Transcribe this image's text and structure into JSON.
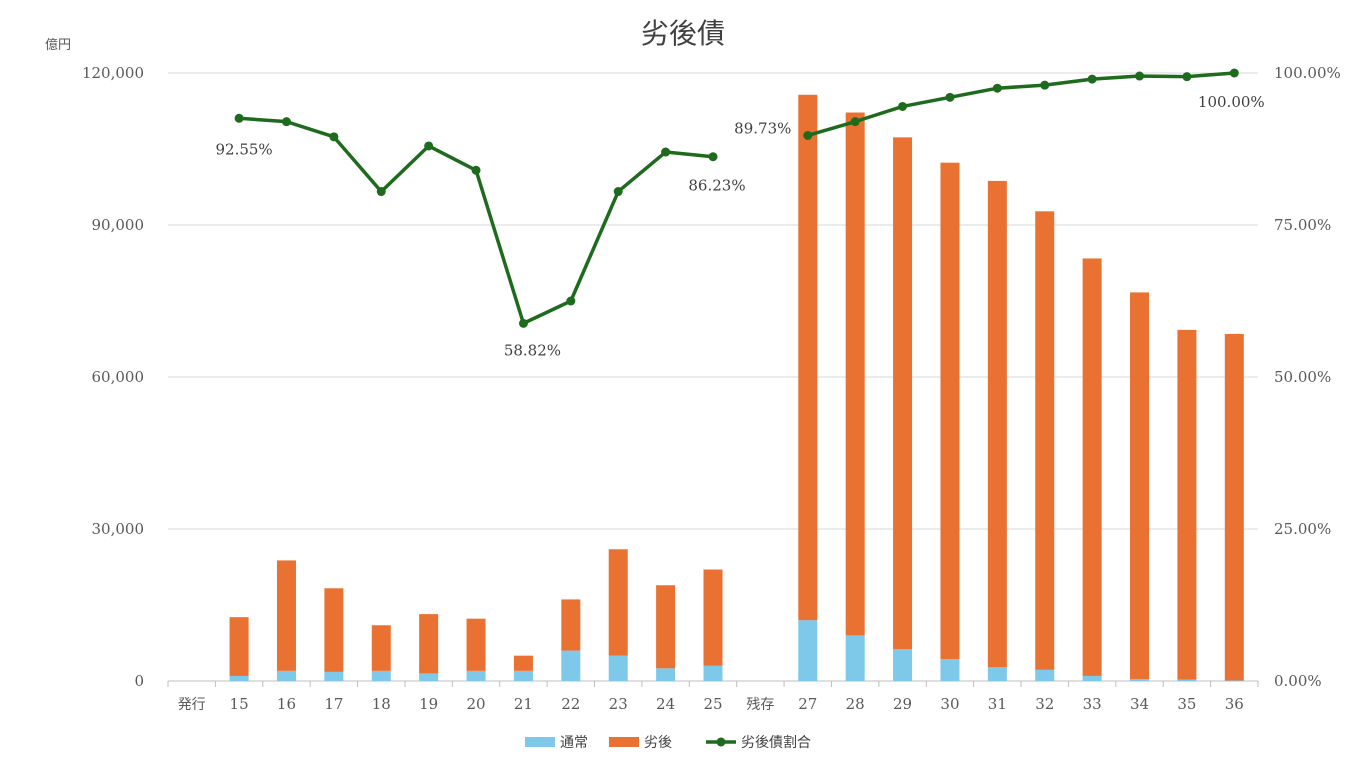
{
  "chart_data": {
    "type": "bar",
    "title": "劣後債",
    "y_unit": "億円",
    "ylim": [
      0,
      120000
    ],
    "y2lim": [
      0,
      1
    ],
    "y_ticks": [
      "0",
      "30,000",
      "60,000",
      "90,000",
      "120,000"
    ],
    "y2_ticks": [
      "0.00%",
      "25.00%",
      "50.00%",
      "75.00%",
      "100.00%"
    ],
    "categories": [
      "発行",
      "15",
      "16",
      "17",
      "18",
      "19",
      "20",
      "21",
      "22",
      "23",
      "24",
      "25",
      "残存",
      "27",
      "28",
      "29",
      "30",
      "31",
      "32",
      "33",
      "34",
      "35",
      "36"
    ],
    "colors": {
      "normal": "#7EC8E9",
      "subordinated": "#E97132",
      "ratio": "#1E6B1E",
      "grid": "#D9D9D9",
      "axis": "#BFBFBF"
    },
    "series": [
      {
        "name": "通常",
        "type": "bar",
        "stack": true,
        "values": [
          null,
          1000,
          2000,
          1800,
          2000,
          1500,
          2000,
          2000,
          6000,
          5000,
          2500,
          3000,
          null,
          12000,
          9000,
          6300,
          4300,
          2700,
          2200,
          1000,
          400,
          300,
          100
        ]
      },
      {
        "name": "劣後",
        "type": "bar",
        "stack": true,
        "values": [
          null,
          11600,
          21800,
          16500,
          9000,
          11700,
          10300,
          3000,
          10100,
          21000,
          16400,
          19000,
          null,
          103700,
          103200,
          101000,
          98000,
          96000,
          90500,
          82400,
          76300,
          69000,
          68400
        ]
      },
      {
        "name": "劣後債割合",
        "type": "line",
        "axis": "right",
        "values": [
          null,
          0.9255,
          0.92,
          0.895,
          0.805,
          0.88,
          0.84,
          0.5882,
          0.625,
          0.805,
          0.87,
          0.8623,
          null,
          0.8973,
          0.92,
          0.945,
          0.96,
          0.975,
          0.98,
          0.99,
          0.995,
          0.994,
          1.0
        ]
      }
    ],
    "annotations": [
      {
        "index": 1,
        "text": "92.55%"
      },
      {
        "index": 7,
        "text": "58.82%"
      },
      {
        "index": 11,
        "text": "86.23%"
      },
      {
        "index": 13,
        "text": "89.73%"
      },
      {
        "index": 22,
        "text": "100.00%"
      }
    ],
    "legend": {
      "position": "bottom",
      "items": [
        "通常",
        "劣後",
        "劣後債割合"
      ]
    }
  }
}
